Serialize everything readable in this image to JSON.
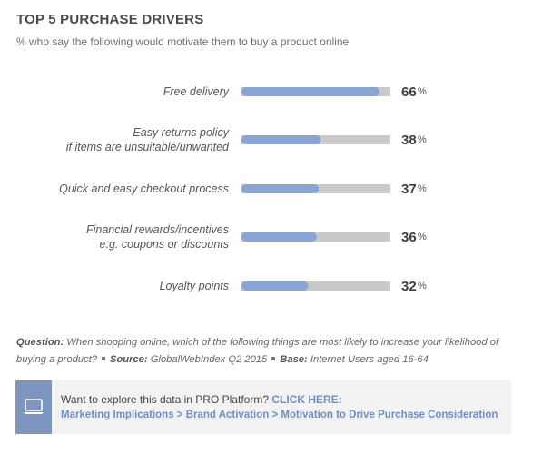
{
  "header": {
    "title": "TOP 5 PURCHASE DRIVERS",
    "subtitle": "% who say the following would motivate them to buy a product online"
  },
  "colors": {
    "bar_fill": "#8aa4d4",
    "bar_track": "#c9c9c9",
    "accent": "#6f8fc4"
  },
  "chart_data": {
    "type": "bar",
    "orientation": "horizontal",
    "title": "TOP 5 PURCHASE DRIVERS",
    "subtitle": "% who say the following would motivate them to buy a product online",
    "categories": [
      [
        "Free delivery"
      ],
      [
        "Easy returns policy",
        "if items are unsuitable/unwanted"
      ],
      [
        "Quick and easy checkout process"
      ],
      [
        "Financial rewards/incentives",
        "e.g. coupons or discounts"
      ],
      [
        "Loyalty points"
      ]
    ],
    "values": [
      66,
      38,
      37,
      36,
      32
    ],
    "value_labels": [
      "66",
      "38",
      "37",
      "36",
      "32"
    ],
    "unit": "%",
    "xlim": [
      0,
      100
    ],
    "grid": false
  },
  "footnote": {
    "question_label": "Question:",
    "question_text": "When shopping online, which of the following things are most likely to increase your likelihood of buying a product?",
    "source_label": "Source:",
    "source_text": "GlobalWebIndex Q2 2015",
    "base_label": "Base:",
    "base_text": "Internet Users aged 16-64"
  },
  "cta": {
    "icon": "laptop-icon",
    "text": "Want to explore this data in PRO Platform?",
    "click_label": "CLICK HERE:",
    "path": "Marketing Implications > Brand Activation > Motivation to Drive Purchase Consideration"
  }
}
